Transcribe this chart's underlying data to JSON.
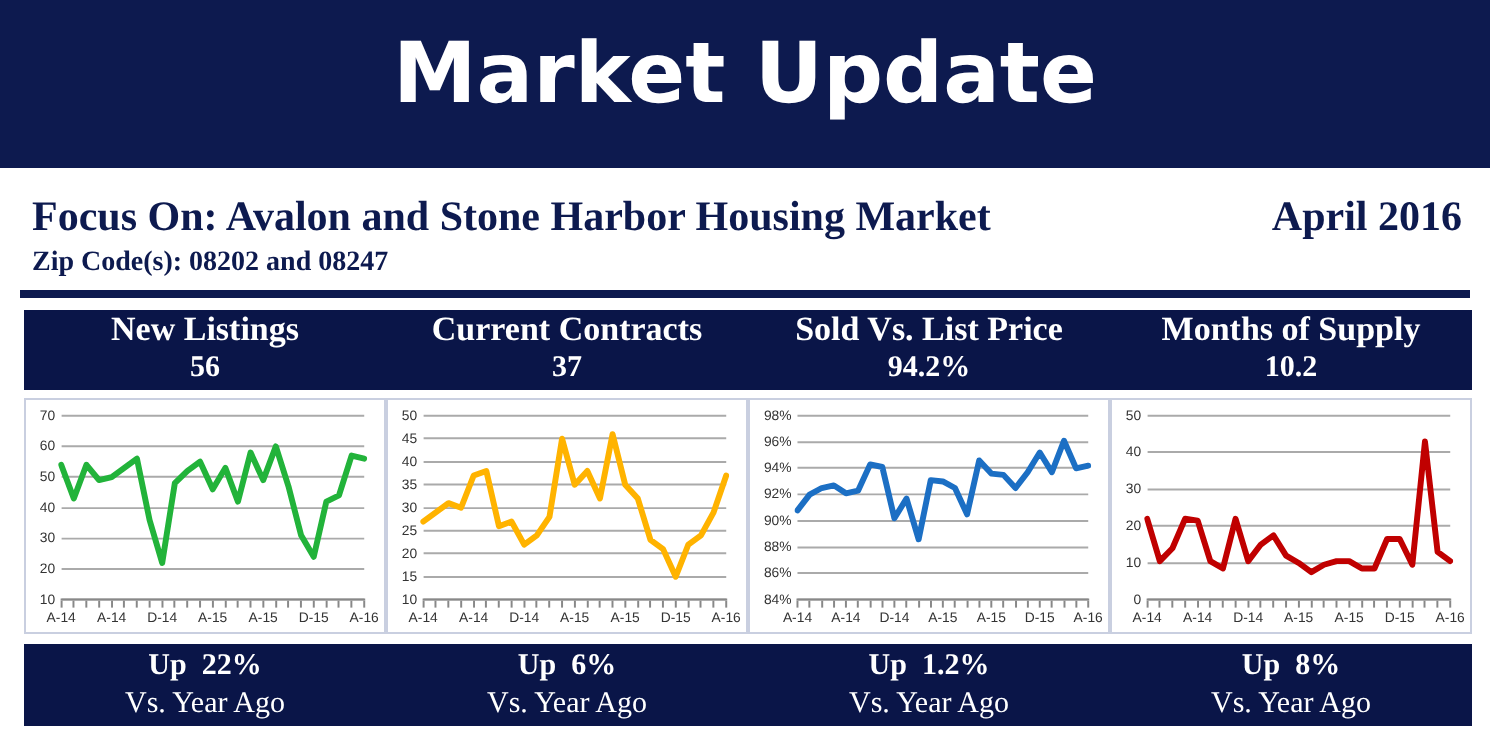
{
  "chart_data": [
    {
      "type": "other",
      "title": "Market Update",
      "subtitle": "Focus On: Avalon and Stone Harbor Housing Market",
      "annotations": [
        "Zip Code(s): 08202 and 08247",
        "April 2016"
      ]
    },
    {
      "type": "line",
      "title": "New Listings",
      "subtitle": "56",
      "annotations": [
        "Up  22%",
        "Vs. Year Ago"
      ],
      "categories": [
        "A-14",
        null,
        null,
        null,
        "A-14",
        null,
        null,
        null,
        "D-14",
        null,
        null,
        null,
        "A-15",
        null,
        null,
        null,
        "A-15",
        null,
        null,
        null,
        "D-15",
        null,
        null,
        null,
        "A-16"
      ],
      "series": [
        {
          "color": "#22b33a",
          "values": [
            54,
            43,
            54,
            49,
            50,
            53,
            56,
            36,
            22,
            48,
            52,
            55,
            46,
            53,
            42,
            58,
            49,
            60,
            47,
            31,
            24,
            42,
            44,
            57,
            56
          ]
        }
      ],
      "ylim": [
        10,
        70
      ],
      "yticks": [
        10,
        20,
        30,
        40,
        50,
        60,
        70
      ],
      "grid": "y",
      "marker": "none",
      "line_style": "solid"
    },
    {
      "type": "line",
      "title": "Current Contracts",
      "subtitle": "37",
      "annotations": [
        "Up  6%",
        "Vs. Year Ago"
      ],
      "categories": [
        "A-14",
        null,
        null,
        null,
        "A-14",
        null,
        null,
        null,
        "D-14",
        null,
        null,
        null,
        "A-15",
        null,
        null,
        null,
        "A-15",
        null,
        null,
        null,
        "D-15",
        null,
        null,
        null,
        "A-16"
      ],
      "series": [
        {
          "color": "#ffb300",
          "values": [
            27,
            29,
            31,
            30,
            37,
            38,
            26,
            27,
            22,
            24,
            28,
            45,
            35,
            38,
            32,
            46,
            35,
            32,
            23,
            21,
            15,
            22,
            24,
            29,
            37
          ]
        }
      ],
      "ylim": [
        10,
        50
      ],
      "yticks": [
        10,
        15,
        20,
        25,
        30,
        35,
        40,
        45,
        50
      ],
      "grid": "y",
      "marker": "none",
      "line_style": "solid"
    },
    {
      "type": "line",
      "title": "Sold Vs. List Price",
      "subtitle": "94.2%",
      "annotations": [
        "Up  1.2%",
        "Vs. Year Ago"
      ],
      "categories": [
        "A-14",
        null,
        null,
        null,
        "A-14",
        null,
        null,
        null,
        "D-14",
        null,
        null,
        null,
        "A-15",
        null,
        null,
        null,
        "A-15",
        null,
        null,
        null,
        "D-15",
        null,
        null,
        null,
        "A-16"
      ],
      "series": [
        {
          "color": "#1c6fc4",
          "values": [
            90.8,
            92.0,
            92.5,
            92.7,
            92.1,
            92.3,
            94.3,
            94.1,
            90.2,
            91.7,
            88.6,
            93.1,
            93.0,
            92.5,
            90.5,
            94.6,
            93.6,
            93.5,
            92.5,
            93.7,
            95.2,
            93.7,
            96.1,
            94.0,
            94.2
          ]
        }
      ],
      "ylim": [
        84,
        98
      ],
      "yticks": [
        {
          "value": 84,
          "label": "84%"
        },
        {
          "value": 86,
          "label": "86%"
        },
        {
          "value": 88,
          "label": "88%"
        },
        {
          "value": 90,
          "label": "90%"
        },
        {
          "value": 92,
          "label": "92%"
        },
        {
          "value": 94,
          "label": "94%"
        },
        {
          "value": 96,
          "label": "96%"
        },
        {
          "value": 98,
          "label": "98%"
        }
      ],
      "grid": "y",
      "marker": "none",
      "line_style": "solid"
    },
    {
      "type": "line",
      "title": "Months of Supply",
      "subtitle": "10.2",
      "annotations": [
        "Up  8%",
        "Vs. Year Ago"
      ],
      "categories": [
        "A-14",
        null,
        null,
        null,
        "A-14",
        null,
        null,
        null,
        "D-14",
        null,
        null,
        null,
        "A-15",
        null,
        null,
        null,
        "A-15",
        null,
        null,
        null,
        "D-15",
        null,
        null,
        null,
        "A-16"
      ],
      "series": [
        {
          "color": "#c00000",
          "values": [
            22,
            10.5,
            14,
            22,
            21.5,
            10.5,
            8.5,
            22,
            10.5,
            15,
            17.5,
            12,
            10,
            7.5,
            9.5,
            10.5,
            10.5,
            8.5,
            8.5,
            16.5,
            16.5,
            9.5,
            43,
            13,
            10.5
          ]
        }
      ],
      "ylim": [
        0,
        50
      ],
      "yticks": [
        0,
        10,
        20,
        30,
        40,
        50
      ],
      "grid": "y",
      "marker": "none",
      "line_style": "solid"
    }
  ]
}
